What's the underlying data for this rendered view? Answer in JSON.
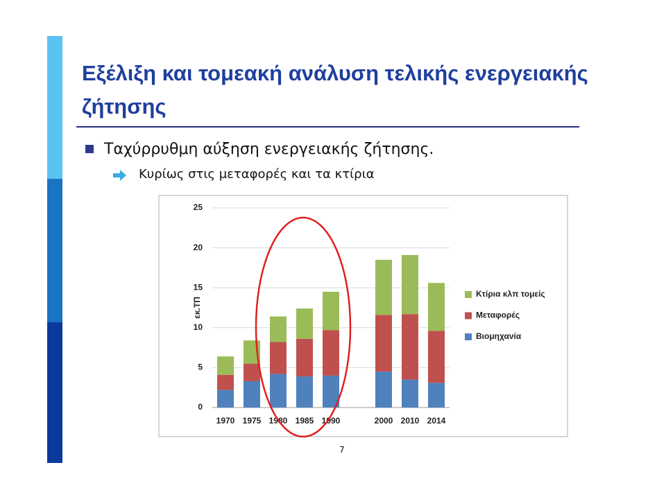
{
  "header": {
    "title": "Εξέλιξη και τομεακή ανάλυση τελικής ενεργειακής ζήτησης"
  },
  "bullets": {
    "main": "Ταχύρρυθμη αύξηση ενεργειακής ζήτησης.",
    "sub": "Κυρίως στις μεταφορές και τα κτίρια"
  },
  "page_number": "7",
  "chart_data": {
    "type": "stacked_bar",
    "ylabel": "εκ.ΤΠ",
    "categories": [
      "1970",
      "1975",
      "1980",
      "1985",
      "1990",
      null,
      "2000",
      "2010",
      "2014"
    ],
    "series": [
      {
        "name": "Βιομηχανία",
        "color": "#4f81bd",
        "values": [
          2.2,
          3.3,
          4.2,
          3.9,
          4.0,
          null,
          4.5,
          3.5,
          3.1
        ]
      },
      {
        "name": "Μεταφορές",
        "color": "#c0504d",
        "values": [
          1.9,
          2.2,
          4.0,
          4.7,
          5.7,
          null,
          7.1,
          8.2,
          6.5
        ]
      },
      {
        "name": "Κτίρια κλπ τομείς",
        "color": "#9bbb59",
        "values": [
          2.3,
          2.9,
          3.2,
          3.8,
          4.8,
          null,
          6.9,
          7.4,
          6.0
        ]
      }
    ],
    "ylim": [
      0,
      25
    ],
    "yticks": [
      0,
      5,
      10,
      15,
      20,
      25
    ],
    "grid": true,
    "legend": "right"
  }
}
